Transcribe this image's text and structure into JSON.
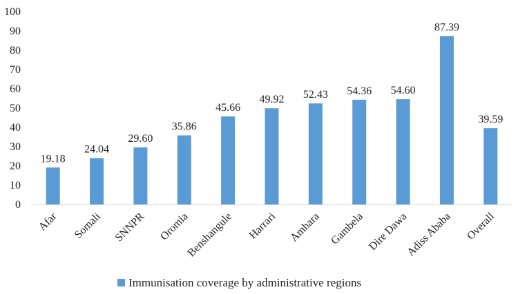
{
  "chart_data": {
    "type": "bar",
    "title": "",
    "xlabel": "",
    "ylabel": "",
    "ylim": [
      0,
      100
    ],
    "yticks": [
      0,
      10,
      20,
      30,
      40,
      50,
      60,
      70,
      80,
      90,
      100
    ],
    "grid": false,
    "legend_position": "bottom",
    "categories": [
      "Afar",
      "Somali",
      "SNNPR",
      "Oromia",
      "Benshangule",
      "Harrari",
      "Amhara",
      "Gambela",
      "Dire Dawa",
      "Adiss Ababa",
      "Overall"
    ],
    "series": [
      {
        "name": "Immunisation coverage by administrative regions",
        "color": "#5b9bd5",
        "values": [
          19.18,
          24.04,
          29.6,
          35.86,
          45.66,
          49.92,
          52.43,
          54.36,
          54.6,
          87.39,
          39.59
        ],
        "labels": [
          "19.18",
          "24.04",
          "29.60",
          "35.86",
          "45.66",
          "49.92",
          "52.43",
          "54.36",
          "54.60",
          "87.39",
          "39.59"
        ]
      }
    ]
  }
}
